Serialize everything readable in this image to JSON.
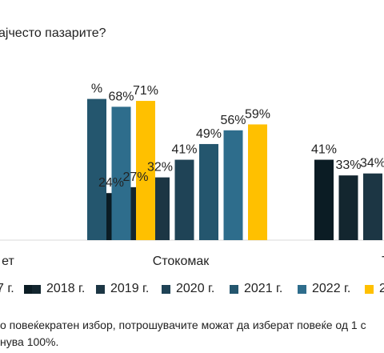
{
  "title": "ајчесто пазарите?",
  "footnote": {
    "line1": "о повеќекратен избор, потрошувачите можат да изберат повеќе од 1 с",
    "line2": "нува 100%."
  },
  "chart_data": {
    "type": "bar",
    "categories": [
      "ет",
      "Стокомак",
      "Т"
    ],
    "series": [
      {
        "name": "7 г.",
        "color": "#0b1c24",
        "values": [
          null,
          24,
          41
        ]
      },
      {
        "name": "2018 г.",
        "color": "#13262f",
        "values": [
          null,
          27,
          33
        ]
      },
      {
        "name": "2019 г.",
        "color": "#1c3644",
        "values": [
          null,
          32,
          34
        ]
      },
      {
        "name": "2020 г.",
        "color": "#1f4356",
        "values": [
          null,
          41,
          null
        ]
      },
      {
        "name": "2021 г.",
        "color": "#24566e",
        "values": [
          72,
          49,
          null
        ]
      },
      {
        "name": "2022 г.",
        "color": "#2e6d8c",
        "values": [
          68,
          56,
          null
        ]
      },
      {
        "name": "20",
        "color": "#ffc000",
        "values": [
          71,
          59,
          null
        ]
      }
    ],
    "value_labels": [
      [
        "",
        "24%",
        "41%"
      ],
      [
        "",
        "27%",
        "33%"
      ],
      [
        "",
        "32%",
        "34%"
      ],
      [
        "",
        "41%",
        ""
      ],
      [
        "%",
        "49%",
        ""
      ],
      [
        "68%",
        "56%",
        ""
      ],
      [
        "71%",
        "59%",
        ""
      ]
    ],
    "ylim": [
      0,
      100
    ],
    "grid": false,
    "legend_position": "bottom"
  }
}
